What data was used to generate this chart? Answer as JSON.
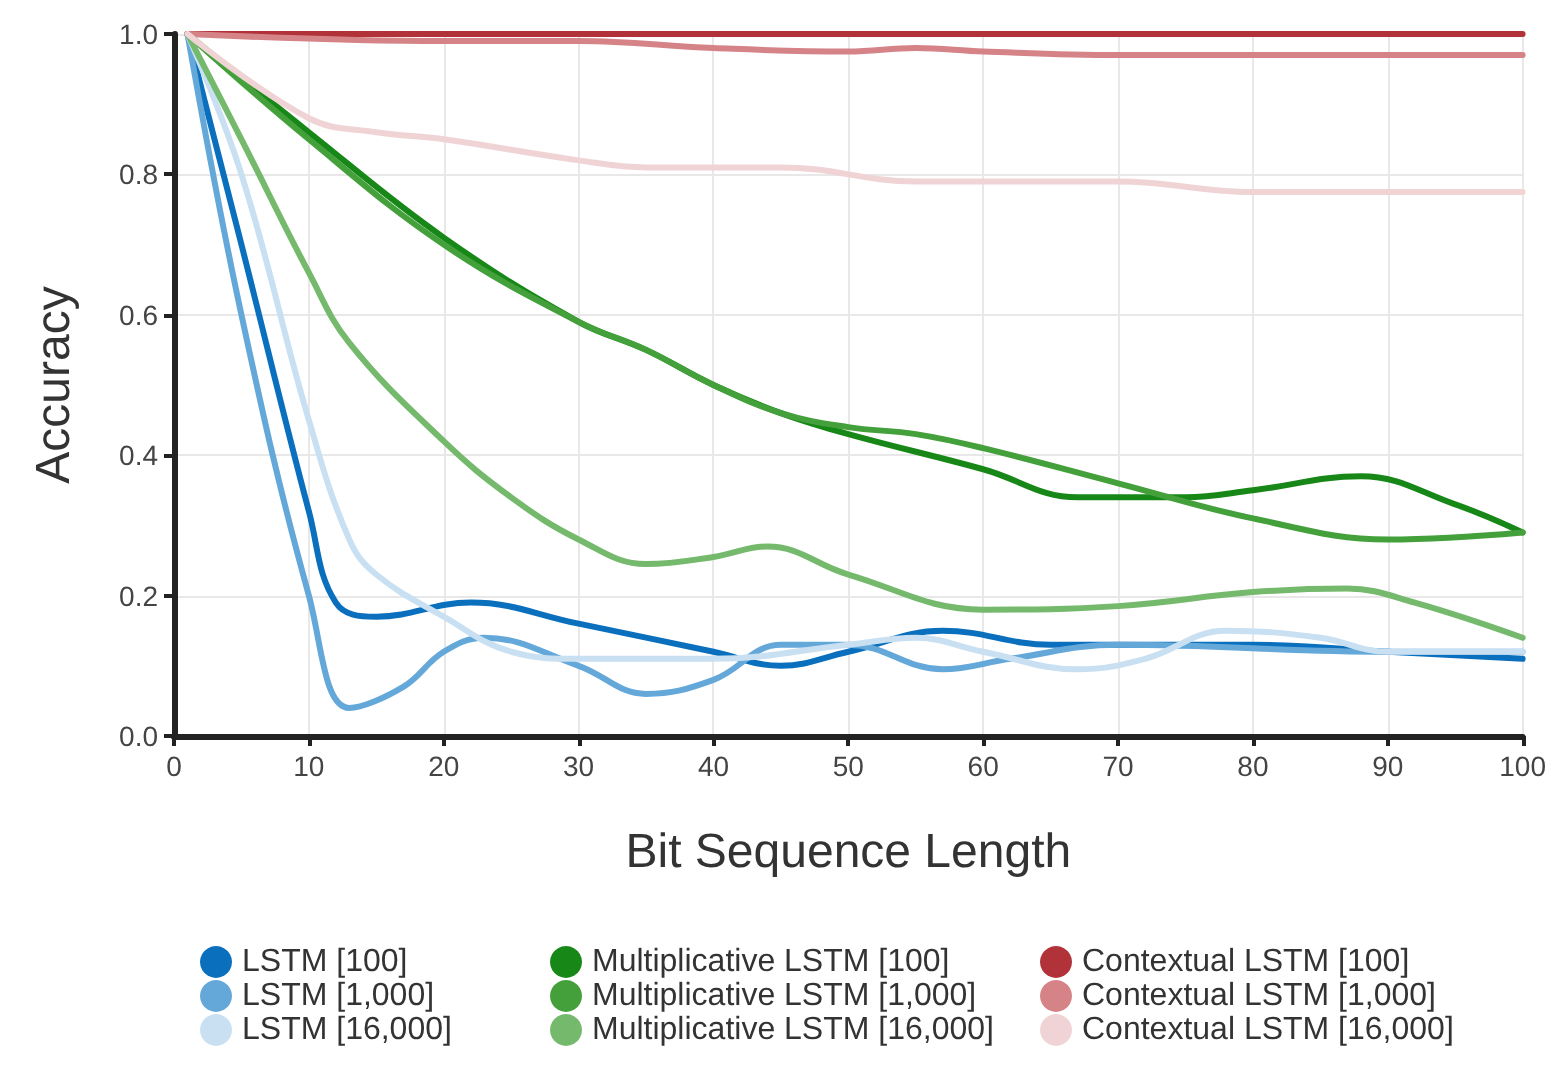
{
  "chart_data": {
    "type": "line",
    "xlabel": "Bit Sequence Length",
    "ylabel": "Accuracy",
    "xlim": [
      0,
      100
    ],
    "xticks": [
      0,
      10,
      20,
      30,
      40,
      50,
      60,
      70,
      80,
      90,
      100
    ],
    "ylim": [
      0,
      1
    ],
    "yticks": [
      {
        "value": 0,
        "label": "0.0"
      },
      0.2,
      0.4,
      0.6,
      0.8,
      {
        "value": 1,
        "label": "1.0"
      }
    ],
    "grid": true,
    "legend": "bottom",
    "marker": "none",
    "line_style": "solid",
    "series": [
      {
        "name": "LSTM [100]",
        "color": "#0a6fbd",
        "x": [
          1,
          5,
          10,
          12,
          15,
          22,
          30,
          40,
          45,
          50,
          57,
          65,
          80,
          90,
          100
        ],
        "values": [
          1.0,
          0.7,
          0.32,
          0.19,
          0.17,
          0.19,
          0.16,
          0.12,
          0.1,
          0.12,
          0.15,
          0.13,
          0.13,
          0.12,
          0.11
        ]
      },
      {
        "name": "LSTM [1,000]",
        "color": "#64a8da",
        "x": [
          1,
          5,
          10,
          13,
          17,
          20,
          23,
          30,
          35,
          40,
          45,
          50,
          57,
          62,
          70,
          90,
          100
        ],
        "values": [
          1.0,
          0.6,
          0.2,
          0.04,
          0.07,
          0.12,
          0.14,
          0.1,
          0.06,
          0.08,
          0.13,
          0.13,
          0.095,
          0.11,
          0.13,
          0.12,
          0.12
        ]
      },
      {
        "name": "LSTM [16,000]",
        "color": "#c8e0f2",
        "x": [
          1,
          5,
          10,
          13,
          15,
          20,
          25,
          30,
          40,
          50,
          55,
          60,
          67,
          72,
          78,
          85,
          90,
          100
        ],
        "values": [
          1.0,
          0.8,
          0.45,
          0.28,
          0.23,
          0.17,
          0.12,
          0.11,
          0.11,
          0.13,
          0.14,
          0.12,
          0.095,
          0.11,
          0.15,
          0.14,
          0.12,
          0.12
        ]
      },
      {
        "name": "Multiplicative LSTM [100]",
        "color": "#178817",
        "x": [
          1,
          10,
          20,
          30,
          35,
          40,
          45,
          50,
          60,
          67,
          75,
          80,
          88,
          95,
          100
        ],
        "values": [
          1.0,
          0.86,
          0.71,
          0.59,
          0.55,
          0.5,
          0.46,
          0.43,
          0.38,
          0.34,
          0.34,
          0.35,
          0.37,
          0.33,
          0.29
        ]
      },
      {
        "name": "Multiplicative LSTM [1,000]",
        "color": "#43a03a",
        "x": [
          1,
          10,
          20,
          30,
          35,
          40,
          45,
          50,
          55,
          60,
          70,
          80,
          90,
          100
        ],
        "values": [
          1.0,
          0.85,
          0.7,
          0.59,
          0.55,
          0.5,
          0.46,
          0.44,
          0.43,
          0.41,
          0.36,
          0.31,
          0.28,
          0.29
        ]
      },
      {
        "name": "Multiplicative LSTM [16,000]",
        "color": "#74b96c",
        "x": [
          1,
          5,
          10,
          13,
          20,
          25,
          30,
          35,
          40,
          44,
          50,
          60,
          70,
          80,
          87,
          92,
          100
        ],
        "values": [
          1.0,
          0.85,
          0.66,
          0.56,
          0.42,
          0.34,
          0.28,
          0.245,
          0.255,
          0.27,
          0.23,
          0.18,
          0.185,
          0.205,
          0.21,
          0.19,
          0.14
        ]
      },
      {
        "name": "Contextual LSTM [100]",
        "color": "#b2323a",
        "x": [
          1,
          50,
          100
        ],
        "values": [
          1.0,
          1.0,
          1.0
        ]
      },
      {
        "name": "Contextual LSTM [1,000]",
        "color": "#d68387",
        "x": [
          1,
          20,
          30,
          40,
          50,
          55,
          60,
          70,
          100
        ],
        "values": [
          1.0,
          0.99,
          0.99,
          0.98,
          0.975,
          0.98,
          0.975,
          0.97,
          0.97
        ]
      },
      {
        "name": "Contextual LSTM [16,000]",
        "color": "#f0d4d5",
        "x": [
          1,
          10,
          15,
          20,
          30,
          35,
          45,
          55,
          70,
          80,
          100
        ],
        "values": [
          1.0,
          0.88,
          0.86,
          0.85,
          0.82,
          0.81,
          0.81,
          0.79,
          0.79,
          0.775,
          0.775
        ]
      }
    ]
  }
}
